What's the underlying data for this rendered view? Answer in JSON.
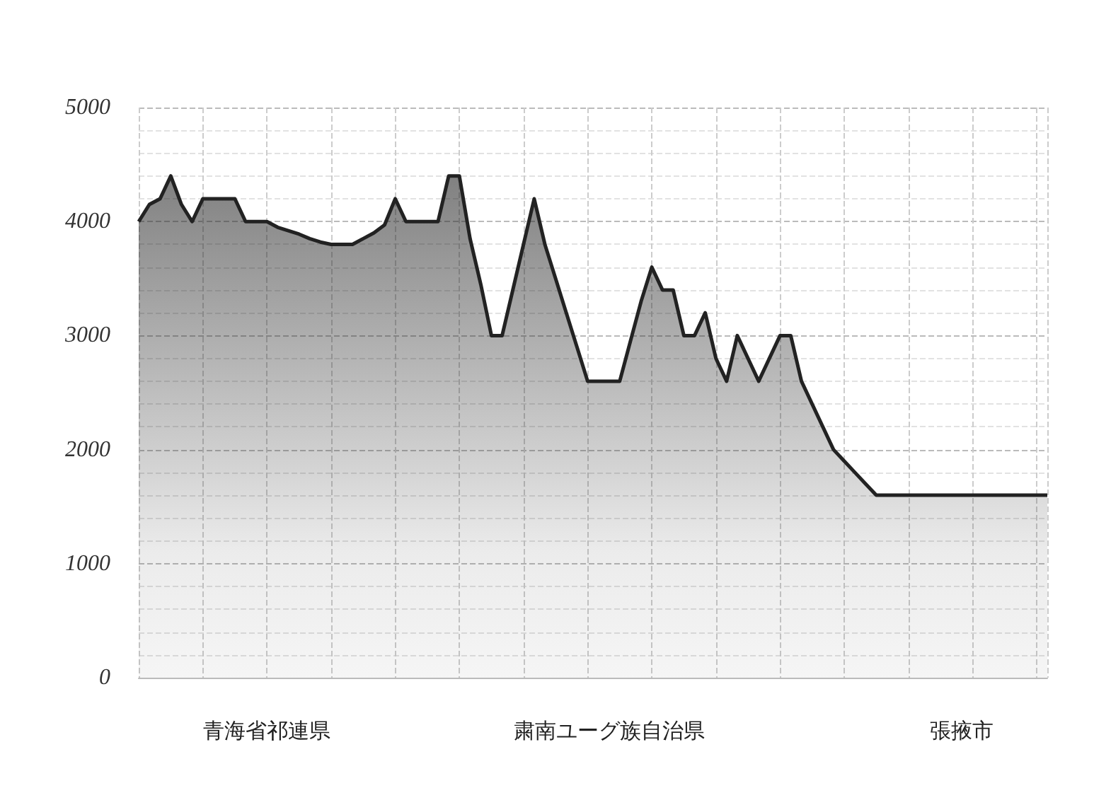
{
  "chart_data": {
    "type": "area",
    "categories": [
      null,
      null,
      null,
      null,
      null,
      null,
      null,
      null,
      null,
      null,
      null,
      null,
      "青海省祁連県",
      null,
      null,
      null,
      null,
      null,
      null,
      null,
      null,
      null,
      null,
      null,
      null,
      null,
      null,
      null,
      null,
      null,
      null,
      null,
      null,
      null,
      null,
      null,
      null,
      null,
      null,
      null,
      null,
      null,
      null,
      null,
      "粛南ユーグ族自治県",
      null,
      null,
      null,
      null,
      null,
      null,
      null,
      null,
      null,
      null,
      null,
      null,
      null,
      null,
      null,
      null,
      null,
      null,
      null,
      null,
      null,
      null,
      null,
      null,
      null,
      null,
      null,
      null,
      null,
      null,
      null,
      null,
      "張掖市",
      null,
      null,
      null,
      null,
      null,
      null,
      null,
      null
    ],
    "series": [
      {
        "color": "#222222",
        "values": [
          4000,
          4150,
          4200,
          4400,
          4150,
          4000,
          4200,
          4200,
          4200,
          4200,
          4000,
          4000,
          4000,
          3950,
          3920,
          3890,
          3850,
          3820,
          3800,
          3800,
          3800,
          3850,
          3900,
          3970,
          4200,
          4000,
          4000,
          4000,
          4000,
          4400,
          4400,
          3850,
          3450,
          3000,
          3000,
          3400,
          3800,
          4200,
          3800,
          3500,
          3200,
          2900,
          2600,
          2600,
          2600,
          2600,
          2950,
          3300,
          3600,
          3400,
          3400,
          3000,
          3000,
          3200,
          2800,
          2600,
          3000,
          2800,
          2600,
          2800,
          3000,
          3000,
          2600,
          2400,
          2200,
          2000,
          1900,
          1800,
          1700,
          1600,
          1600,
          1600,
          1600,
          1600,
          1600,
          1600,
          1600,
          1600,
          1600,
          1600,
          1600,
          1600,
          1600,
          1600,
          1600,
          1600
        ]
      }
    ],
    "ylim": [
      0,
      5000
    ],
    "yticks": [
      0,
      1000,
      2000,
      3000,
      4000,
      5000
    ],
    "grid": true,
    "marker": "none"
  }
}
